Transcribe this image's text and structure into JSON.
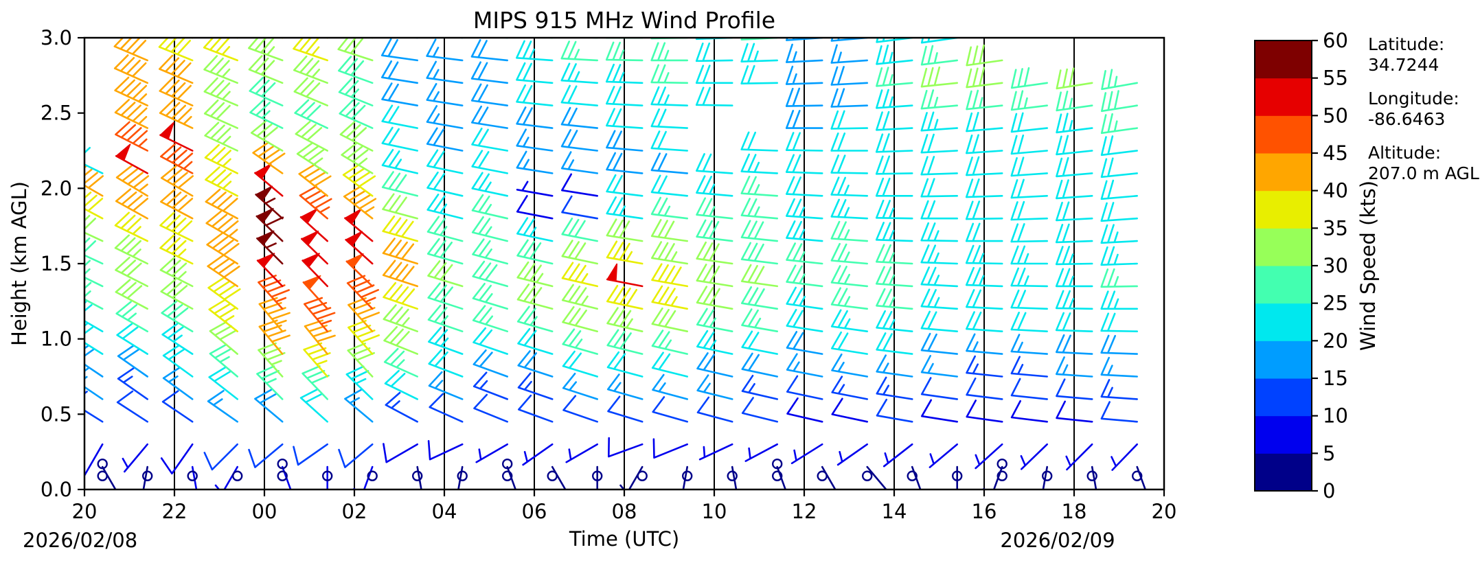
{
  "chart_data": {
    "type": "scatter",
    "subtype": "wind-barb-time-height-profile",
    "title": "MIPS 915 MHz Wind Profile",
    "xlabel": "Time (UTC)",
    "ylabel": "Height (km AGL)",
    "date_left": "2026/02/08",
    "date_right": "2026/02/09",
    "x_tick_labels": [
      "20",
      "22",
      "00",
      "02",
      "04",
      "06",
      "08",
      "10",
      "12",
      "14",
      "16",
      "18",
      "20"
    ],
    "x_range_hours_after_start": [
      0,
      24
    ],
    "grid_hours_after_start": [
      2,
      4,
      6,
      8,
      10,
      12,
      14,
      16,
      18,
      20,
      22
    ],
    "y_tick_labels": [
      "0.0",
      "0.5",
      "1.0",
      "1.5",
      "2.0",
      "2.5",
      "3.0"
    ],
    "ylim": [
      0.0,
      3.0
    ],
    "grid": "vertical-only",
    "legend_position": "colorbar-right",
    "colorbar": {
      "label": "Wind Speed (kts)",
      "tick_values": [
        0,
        5,
        10,
        15,
        20,
        25,
        30,
        35,
        40,
        45,
        50,
        55,
        60
      ],
      "bin_size_kts": 5,
      "colors": [
        "#000089",
        "#0000ee",
        "#0042ff",
        "#009dff",
        "#00e8ee",
        "#43ffb0",
        "#97ff59",
        "#e8ee00",
        "#ffa600",
        "#ff5200",
        "#e60000",
        "#7e0000"
      ]
    },
    "annotations": {
      "lat_label": "Latitude:",
      "lat_value": "34.7244",
      "lon_label": "Longitude:",
      "lon_value": "-86.6463",
      "alt_label": "Altitude:",
      "alt_value": "207.0 m AGL"
    },
    "barb_convention": {
      "half_barb_kts": 5,
      "full_barb_kts": 10,
      "flag_kts": 50,
      "calm_circle_max_kts": 2
    },
    "heights_km": [
      0.15,
      0.3,
      0.45,
      0.6,
      0.75,
      0.9,
      1.05,
      1.2,
      1.35,
      1.5,
      1.65,
      1.8,
      1.95,
      2.1,
      2.25,
      2.4,
      2.55,
      2.7,
      2.85,
      3.0
    ],
    "profiles": [
      {
        "t": 0.4,
        "calm": [
          0.09,
          0.17
        ],
        "speeds": [
          3,
          8,
          12,
          15,
          18,
          20,
          22,
          25,
          27,
          28,
          30,
          38,
          42,
          22,
          null,
          null,
          null,
          null,
          null,
          null
        ],
        "dirs": [
          150,
          210,
          302,
          304,
          304,
          302,
          300,
          298,
          296,
          295,
          295,
          298,
          300,
          296,
          296,
          296,
          296,
          296,
          296,
          296
        ]
      },
      {
        "t": 1.4,
        "calm": [
          0.09
        ],
        "speeds": [
          4,
          7,
          10,
          14,
          18,
          22,
          26,
          30,
          32,
          34,
          36,
          40,
          43,
          50,
          45,
          44,
          43,
          42,
          40,
          38
        ],
        "dirs": [
          190,
          220,
          303,
          305,
          305,
          302,
          300,
          298,
          297,
          296,
          296,
          299,
          301,
          299,
          297,
          296,
          295,
          294,
          293,
          292
        ]
      },
      {
        "t": 2.4,
        "calm": [
          0.09
        ],
        "speeds": [
          5,
          8,
          12,
          16,
          20,
          24,
          28,
          31,
          33,
          35,
          38,
          40,
          42,
          45,
          50,
          44,
          42,
          40,
          38,
          36
        ],
        "dirs": [
          170,
          215,
          304,
          306,
          306,
          303,
          301,
          299,
          297,
          296,
          296,
          298,
          300,
          298,
          296,
          295,
          294,
          293,
          292,
          291
        ]
      },
      {
        "t": 3.4,
        "calm": [
          0.09
        ],
        "speeds": [
          5,
          10,
          15,
          20,
          26,
          32,
          36,
          38,
          40,
          42,
          44,
          40,
          37,
          35,
          33,
          32,
          33,
          34,
          35,
          36
        ],
        "dirs": [
          210,
          225,
          305,
          308,
          310,
          310,
          308,
          306,
          304,
          302,
          300,
          298,
          297,
          296,
          295,
          294,
          293,
          292,
          291,
          290
        ]
      },
      {
        "t": 4.4,
        "calm": [
          0.09,
          0.17
        ],
        "speeds": [
          6,
          12,
          18,
          26,
          34,
          40,
          44,
          46,
          50,
          55,
          58,
          57,
          52,
          40,
          30,
          25,
          28,
          32,
          34,
          35
        ],
        "dirs": [
          160,
          230,
          310,
          315,
          318,
          320,
          320,
          318,
          316,
          315,
          314,
          312,
          310,
          305,
          300,
          296,
          294,
          292,
          290,
          288
        ]
      },
      {
        "t": 5.4,
        "calm": [
          0.09
        ],
        "speeds": [
          6,
          12,
          20,
          28,
          36,
          42,
          46,
          48,
          50,
          52,
          50,
          46,
          40,
          34,
          30,
          28,
          30,
          33,
          36,
          37
        ],
        "dirs": [
          180,
          235,
          312,
          316,
          319,
          321,
          320,
          318,
          316,
          314,
          312,
          310,
          308,
          303,
          298,
          295,
          293,
          291,
          289,
          287
        ]
      },
      {
        "t": 6.4,
        "calm": [
          0.09
        ],
        "speeds": [
          5,
          10,
          16,
          24,
          32,
          38,
          42,
          45,
          48,
          52,
          50,
          44,
          38,
          33,
          30,
          28,
          27,
          28,
          30,
          31
        ],
        "dirs": [
          200,
          230,
          310,
          314,
          317,
          318,
          318,
          316,
          314,
          312,
          310,
          308,
          306,
          301,
          297,
          294,
          292,
          290,
          288,
          286
        ]
      },
      {
        "t": 7.4,
        "calm": [
          0.09
        ],
        "speeds": [
          4,
          8,
          14,
          20,
          26,
          30,
          34,
          38,
          40,
          42,
          38,
          32,
          28,
          24,
          22,
          20,
          19,
          18,
          18,
          17
        ],
        "dirs": [
          170,
          240,
          298,
          296,
          294,
          292,
          290,
          289,
          288,
          287,
          286,
          285,
          284,
          283,
          282,
          281,
          280,
          279,
          278,
          277
        ]
      },
      {
        "t": 8.4,
        "calm": [
          0.09
        ],
        "speeds": [
          4,
          8,
          12,
          16,
          20,
          24,
          26,
          28,
          30,
          28,
          26,
          24,
          22,
          20,
          18,
          17,
          16,
          16,
          17,
          18
        ],
        "dirs": [
          190,
          245,
          294,
          292,
          291,
          290,
          289,
          288,
          287,
          286,
          285,
          284,
          283,
          282,
          281,
          280,
          279,
          278,
          277,
          276
        ]
      },
      {
        "t": 9.4,
        "calm": [
          0.09,
          0.17
        ],
        "speeds": [
          3,
          6,
          10,
          14,
          18,
          22,
          25,
          27,
          28,
          27,
          26,
          25,
          23,
          21,
          20,
          19,
          18,
          18,
          19,
          20
        ],
        "dirs": [
          160,
          240,
          292,
          291,
          290,
          289,
          288,
          287,
          286,
          285,
          284,
          283,
          282,
          281,
          280,
          279,
          278,
          277,
          276,
          275
        ]
      },
      {
        "t": 10.4,
        "calm": [
          0.09
        ],
        "speeds": [
          3,
          6,
          10,
          14,
          18,
          22,
          26,
          30,
          33,
          28,
          24,
          8,
          6,
          16,
          17,
          18,
          20,
          22,
          24,
          25
        ],
        "dirs": [
          150,
          235,
          290,
          289,
          288,
          287,
          286,
          285,
          284,
          283,
          282,
          281,
          280,
          279,
          278,
          277,
          276,
          275,
          274,
          273
        ]
      },
      {
        "t": 11.4,
        "calm": [
          0.09
        ],
        "speeds": [
          4,
          7,
          11,
          15,
          20,
          25,
          30,
          34,
          36,
          32,
          28,
          12,
          9,
          17,
          18,
          19,
          21,
          23,
          25,
          26
        ],
        "dirs": [
          180,
          240,
          289,
          288,
          287,
          286,
          285,
          284,
          283,
          282,
          281,
          280,
          279,
          278,
          277,
          276,
          275,
          274,
          273,
          272
        ]
      },
      {
        "t": 12.4,
        "calm": [
          0.09
        ],
        "speeds": [
          4,
          8,
          12,
          16,
          22,
          28,
          34,
          38,
          50,
          36,
          30,
          24,
          20,
          18,
          19,
          20,
          22,
          24,
          26,
          27
        ],
        "dirs": [
          210,
          250,
          287,
          286,
          285,
          284,
          283,
          282,
          281,
          280,
          279,
          278,
          277,
          276,
          275,
          274,
          273,
          272,
          271,
          270
        ]
      },
      {
        "t": 13.4,
        "calm": [
          0.09
        ],
        "speeds": [
          4,
          8,
          12,
          17,
          22,
          27,
          32,
          36,
          38,
          34,
          30,
          26,
          22,
          19,
          20,
          21,
          23,
          25,
          27,
          28
        ],
        "dirs": [
          190,
          248,
          286,
          285,
          284,
          283,
          282,
          281,
          280,
          279,
          278,
          277,
          276,
          275,
          274,
          273,
          272,
          271,
          270,
          269
        ]
      },
      {
        "t": 14.4,
        "calm": [
          0.09
        ],
        "speeds": [
          3,
          7,
          11,
          15,
          19,
          23,
          27,
          30,
          32,
          30,
          28,
          26,
          24,
          22,
          null,
          null,
          20,
          21,
          22,
          24
        ],
        "dirs": [
          170,
          245,
          285,
          284,
          283,
          282,
          281,
          280,
          279,
          278,
          277,
          276,
          275,
          274,
          273,
          272,
          271,
          270,
          269,
          268
        ]
      },
      {
        "t": 15.4,
        "calm": [
          0.09,
          0.17
        ],
        "speeds": [
          3,
          6,
          10,
          14,
          18,
          22,
          25,
          28,
          30,
          29,
          28,
          26,
          25,
          23,
          22,
          null,
          null,
          22,
          24,
          26
        ],
        "dirs": [
          160,
          242,
          284,
          283,
          282,
          281,
          280,
          279,
          278,
          277,
          276,
          275,
          274,
          273,
          272,
          271,
          270,
          269,
          268,
          267
        ]
      },
      {
        "t": 16.4,
        "calm": [
          0.09
        ],
        "speeds": [
          3,
          6,
          9,
          12,
          16,
          19,
          22,
          24,
          26,
          25,
          24,
          23,
          22,
          21,
          20,
          19,
          18,
          17,
          16,
          16
        ],
        "dirs": [
          150,
          238,
          283,
          282,
          281,
          280,
          279,
          278,
          277,
          276,
          275,
          274,
          273,
          272,
          271,
          270,
          269,
          268,
          267,
          266
        ]
      },
      {
        "t": 17.4,
        "calm": [
          0.09
        ],
        "speeds": [
          3,
          6,
          9,
          13,
          16,
          20,
          23,
          25,
          27,
          26,
          25,
          24,
          23,
          22,
          21,
          20,
          19,
          18,
          17,
          16
        ],
        "dirs": [
          140,
          235,
          282,
          281,
          280,
          279,
          278,
          277,
          276,
          275,
          274,
          273,
          272,
          271,
          270,
          269,
          268,
          267,
          266,
          265
        ]
      },
      {
        "t": 18.4,
        "calm": [
          0.09
        ],
        "speeds": [
          3,
          6,
          10,
          13,
          17,
          20,
          23,
          25,
          26,
          25,
          24,
          23,
          22,
          22,
          21,
          22,
          24,
          26,
          24,
          20
        ],
        "dirs": [
          160,
          232,
          280,
          279,
          278,
          277,
          276,
          275,
          274,
          273,
          272,
          271,
          270,
          269,
          268,
          267,
          266,
          265,
          264,
          263
        ]
      },
      {
        "t": 19.4,
        "calm": [
          0.09
        ],
        "speeds": [
          3,
          6,
          9,
          12,
          15,
          18,
          21,
          23,
          24,
          24,
          23,
          22,
          22,
          21,
          21,
          23,
          26,
          30,
          26,
          22
        ],
        "dirs": [
          180,
          230,
          279,
          278,
          277,
          276,
          275,
          274,
          273,
          272,
          271,
          270,
          269,
          268,
          267,
          266,
          265,
          264,
          263,
          262
        ]
      },
      {
        "t": 20.4,
        "calm": [
          0.09,
          0.17
        ],
        "speeds": [
          3,
          5,
          8,
          11,
          14,
          17,
          20,
          22,
          24,
          23,
          22,
          21,
          21,
          20,
          20,
          22,
          26,
          30,
          32,
          null
        ],
        "dirs": [
          200,
          228,
          278,
          277,
          276,
          275,
          274,
          273,
          272,
          271,
          270,
          269,
          268,
          267,
          266,
          265,
          264,
          263,
          262,
          261
        ]
      },
      {
        "t": 21.4,
        "calm": [
          0.09
        ],
        "speeds": [
          3,
          5,
          8,
          11,
          14,
          17,
          20,
          22,
          23,
          23,
          22,
          21,
          20,
          20,
          20,
          21,
          25,
          28,
          null,
          null
        ],
        "dirs": [
          190,
          226,
          277,
          276,
          275,
          274,
          273,
          272,
          271,
          270,
          269,
          268,
          267,
          266,
          265,
          264,
          263,
          262,
          261,
          260
        ]
      },
      {
        "t": 22.4,
        "calm": [
          0.09
        ],
        "speeds": [
          3,
          6,
          9,
          12,
          15,
          18,
          21,
          23,
          24,
          23,
          22,
          21,
          20,
          20,
          21,
          24,
          27,
          30,
          null,
          null
        ],
        "dirs": [
          170,
          225,
          276,
          275,
          274,
          273,
          272,
          271,
          270,
          269,
          268,
          267,
          266,
          265,
          264,
          263,
          262,
          261,
          260,
          259
        ]
      },
      {
        "t": 23.4,
        "calm": [
          0.09
        ],
        "speeds": [
          4,
          6,
          10,
          13,
          16,
          19,
          22,
          24,
          25,
          24,
          23,
          22,
          21,
          21,
          22,
          25,
          28,
          26,
          null,
          null
        ],
        "dirs": [
          160,
          224,
          275,
          274,
          273,
          272,
          271,
          270,
          269,
          268,
          267,
          266,
          265,
          264,
          263,
          262,
          261,
          260,
          259,
          258
        ]
      }
    ]
  }
}
